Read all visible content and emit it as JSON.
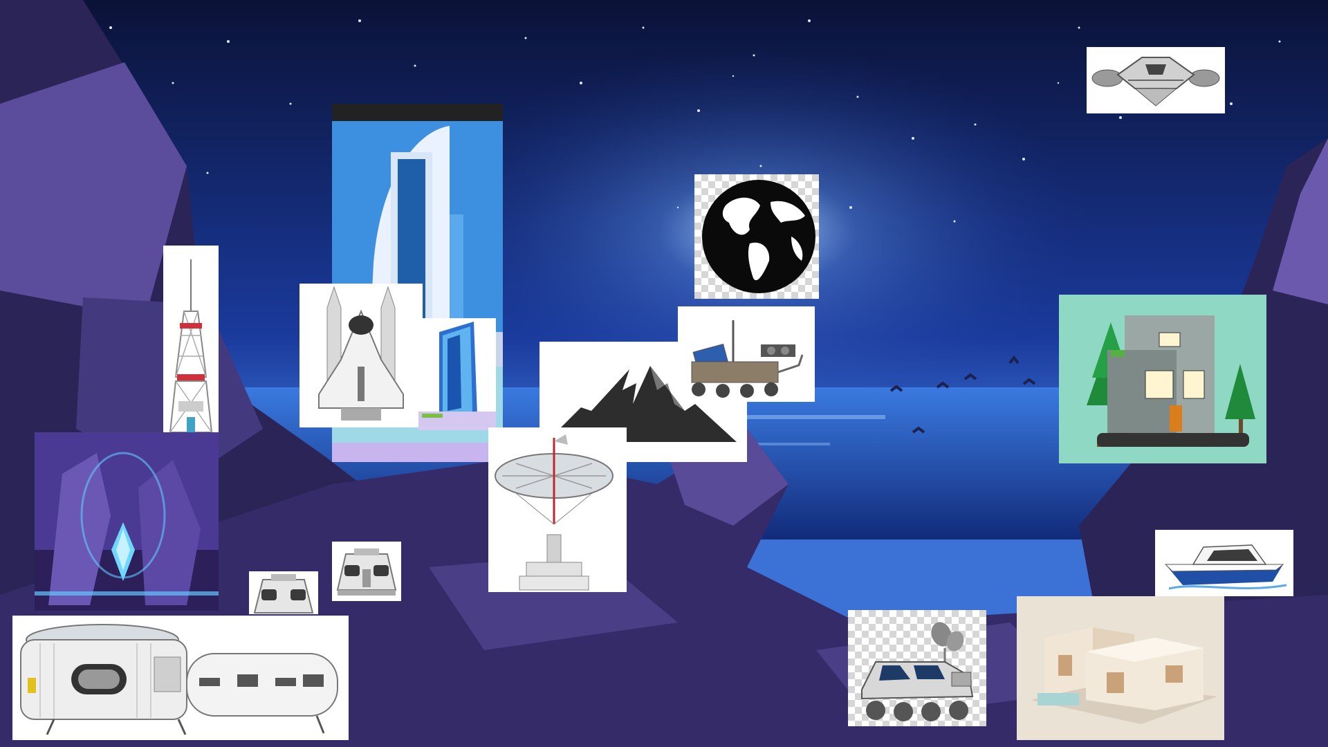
{
  "canvas": {
    "background": "night-sky-ocean-cliffs",
    "colors": {
      "sky_top": "#0b1237",
      "sky_mid": "#1a3a9c",
      "horizon_glow": "#6fa9ff",
      "ocean": "#1d4fb8",
      "rock_dark": "#2b2456",
      "rock_light": "#5b4c9c"
    }
  },
  "stickers": [
    {
      "icon": "radio-tower-icon"
    },
    {
      "icon": "futuristic-tower-icon"
    },
    {
      "icon": "space-shuttle-icon"
    },
    {
      "icon": "glass-building-icon"
    },
    {
      "icon": "crystal-cave-icon"
    },
    {
      "icon": "capsule-module-icon"
    },
    {
      "icon": "capsule-module-small-icon"
    },
    {
      "icon": "space-station-module-icon"
    },
    {
      "icon": "globe-icon"
    },
    {
      "icon": "mountain-icon"
    },
    {
      "icon": "mars-rover-icon"
    },
    {
      "icon": "satellite-dish-icon"
    },
    {
      "icon": "spaceship-icon"
    },
    {
      "icon": "house-with-trees-icon"
    },
    {
      "icon": "speedboat-icon"
    },
    {
      "icon": "lunar-rover-icon"
    },
    {
      "icon": "modern-house-model-icon"
    }
  ]
}
